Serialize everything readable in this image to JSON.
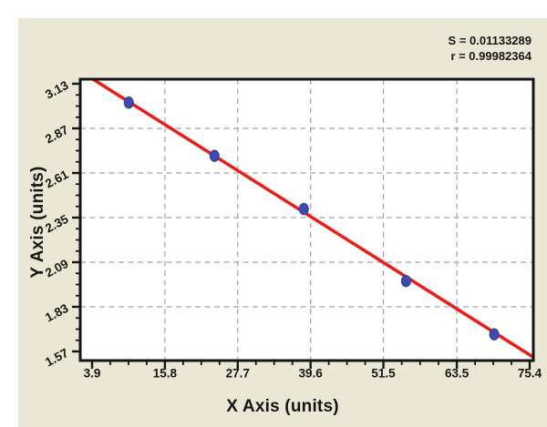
{
  "window": {
    "background": "#ffffff",
    "panel_background": "#eae8d4"
  },
  "panel": {
    "stats": {
      "s_label": "S = 0.01133289",
      "r_label": "r = 0.99982364"
    }
  },
  "chart_data": {
    "type": "scatter",
    "title": "",
    "xlabel": "X Axis (units)",
    "ylabel": "Y Axis (units)",
    "xlim": [
      3.9,
      75.4
    ],
    "ylim": [
      1.57,
      3.13
    ],
    "x_tick_labels": [
      "3.9",
      "15.8",
      "27.7",
      "39.6",
      "51.5",
      "63.5",
      "75.4"
    ],
    "y_tick_labels": [
      "1.57",
      "1.83",
      "2.09",
      "2.35",
      "2.61",
      "2.87",
      "3.13"
    ],
    "minor_ticks_between_majors": 3,
    "grid": {
      "style": "dashed",
      "interior_major_ticks_only": true
    },
    "legend": "none",
    "points": [
      {
        "x": 9.9,
        "y": 3.02
      },
      {
        "x": 23.9,
        "y": 2.71
      },
      {
        "x": 38.5,
        "y": 2.4
      },
      {
        "x": 55.2,
        "y": 1.98
      },
      {
        "x": 69.6,
        "y": 1.67
      }
    ],
    "fit_line": {
      "x1": 3.9,
      "y1": 3.16,
      "x2": 75.4,
      "y2": 1.55
    },
    "annotations": [
      "S = 0.01133289",
      "r = 0.99982364"
    ],
    "colors": {
      "fit_line": "#ed1c16",
      "point_fill": "#3a4cb1",
      "point_stroke": "#2e3c96",
      "grid": "#a3a3a3",
      "axis": "#151515",
      "text": "#151515",
      "plot_bg": "#ffffff",
      "panel_bg": "#eae8d4"
    }
  }
}
